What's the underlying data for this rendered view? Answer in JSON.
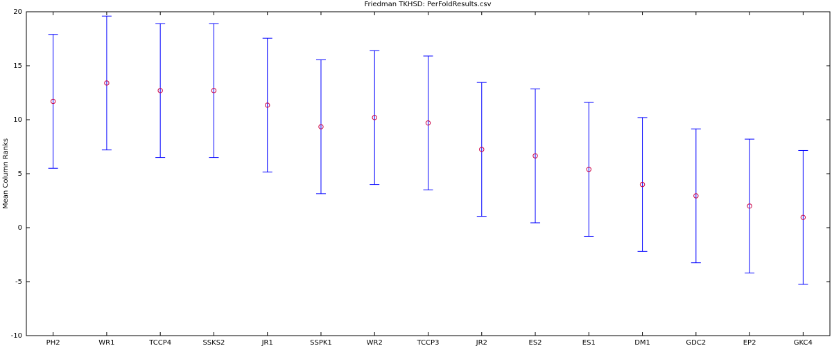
{
  "chart_data": {
    "type": "errorbar",
    "title": "Friedman TKHSD: PerFoldResults.csv",
    "ylabel": "Mean Column Ranks",
    "categories": [
      "PH2",
      "WR1",
      "TCCP4",
      "SSKS2",
      "JR1",
      "SSPK1",
      "WR2",
      "TCCP3",
      "JR2",
      "ES2",
      "ES1",
      "DM1",
      "GDC2",
      "EP2",
      "GKC4"
    ],
    "values": [
      11.7,
      13.4,
      12.7,
      12.7,
      11.35,
      9.35,
      10.2,
      9.7,
      7.25,
      6.65,
      5.4,
      4.0,
      2.95,
      2.0,
      0.95
    ],
    "errors": [
      6.2,
      6.2,
      6.2,
      6.2,
      6.2,
      6.2,
      6.2,
      6.2,
      6.2,
      6.2,
      6.2,
      6.2,
      6.2,
      6.2,
      6.2
    ],
    "color": "#0000ff",
    "marker_color": "#cc0044",
    "ylim": [
      -10,
      20
    ],
    "yticks": [
      -10,
      -5,
      0,
      5,
      10,
      15,
      20
    ],
    "grid": false
  }
}
